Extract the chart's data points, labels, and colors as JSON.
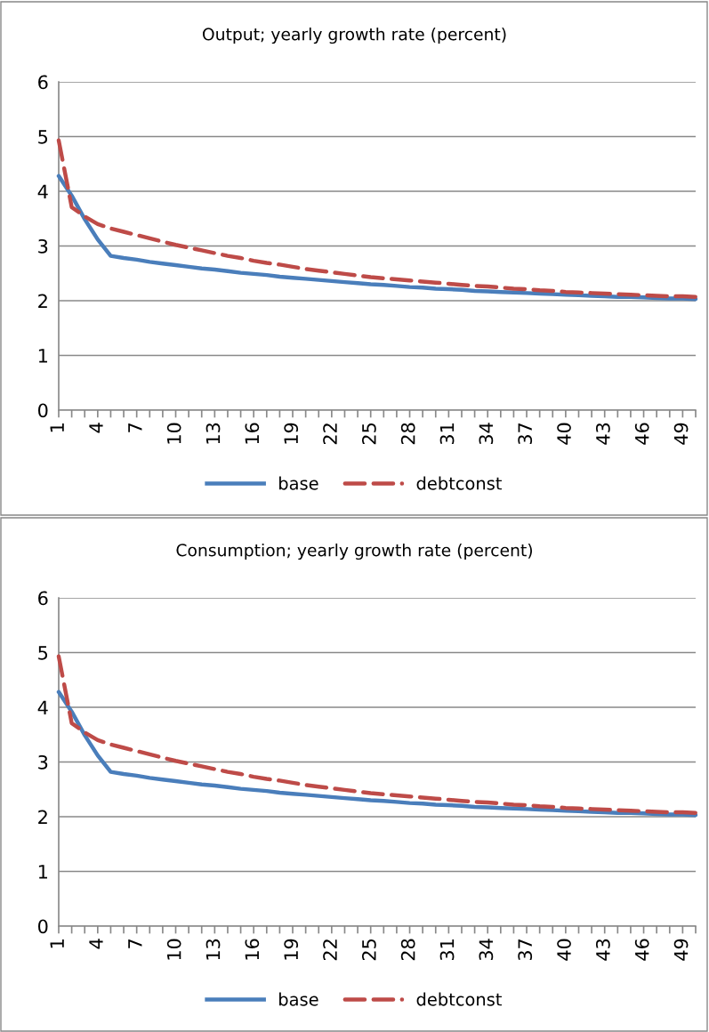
{
  "chart_data": [
    {
      "type": "line",
      "title": "Output; yearly growth rate (percent)",
      "categories": [
        "1",
        null,
        null,
        "4",
        null,
        null,
        "7",
        null,
        null,
        "10",
        null,
        null,
        "13",
        null,
        null,
        "16",
        null,
        null,
        "19",
        null,
        null,
        "22",
        null,
        null,
        "25",
        null,
        null,
        "28",
        null,
        null,
        "31",
        null,
        null,
        "34",
        null,
        null,
        "37",
        null,
        null,
        "40",
        null,
        null,
        "43",
        null,
        null,
        "46",
        null,
        null,
        "49",
        null
      ],
      "series": [
        {
          "name": "base",
          "color": "#4a7ebb",
          "line_style": "solid",
          "values": [
            4.28,
            3.92,
            3.49,
            3.12,
            2.82,
            2.78,
            2.75,
            2.71,
            2.68,
            2.65,
            2.62,
            2.59,
            2.57,
            2.54,
            2.51,
            2.49,
            2.47,
            2.44,
            2.42,
            2.4,
            2.38,
            2.36,
            2.34,
            2.32,
            2.3,
            2.29,
            2.27,
            2.25,
            2.24,
            2.22,
            2.21,
            2.2,
            2.18,
            2.17,
            2.16,
            2.15,
            2.14,
            2.13,
            2.12,
            2.11,
            2.1,
            2.09,
            2.08,
            2.07,
            2.07,
            2.06,
            2.05,
            2.04,
            2.04,
            2.03
          ]
        },
        {
          "name": "debtconst",
          "color": "#be4b48",
          "line_style": "dashed",
          "values": [
            4.93,
            3.71,
            3.54,
            3.4,
            3.32,
            3.26,
            3.2,
            3.14,
            3.08,
            3.02,
            2.97,
            2.92,
            2.87,
            2.82,
            2.78,
            2.73,
            2.69,
            2.66,
            2.62,
            2.58,
            2.55,
            2.52,
            2.49,
            2.46,
            2.43,
            2.41,
            2.39,
            2.37,
            2.35,
            2.33,
            2.31,
            2.29,
            2.27,
            2.26,
            2.24,
            2.22,
            2.21,
            2.19,
            2.18,
            2.16,
            2.15,
            2.14,
            2.13,
            2.12,
            2.11,
            2.1,
            2.09,
            2.08,
            2.08,
            2.07
          ]
        }
      ],
      "ylim": [
        0,
        6
      ],
      "yticks": [
        0,
        1,
        2,
        3,
        4,
        5,
        6
      ],
      "grid": "y",
      "legend": "bottom",
      "marker": "none"
    },
    {
      "type": "line",
      "title": "Consumption; yearly growth rate (percent)",
      "categories": [
        "1",
        null,
        null,
        "4",
        null,
        null,
        "7",
        null,
        null,
        "10",
        null,
        null,
        "13",
        null,
        null,
        "16",
        null,
        null,
        "19",
        null,
        null,
        "22",
        null,
        null,
        "25",
        null,
        null,
        "28",
        null,
        null,
        "31",
        null,
        null,
        "34",
        null,
        null,
        "37",
        null,
        null,
        "40",
        null,
        null,
        "43",
        null,
        null,
        "46",
        null,
        null,
        "49",
        null
      ],
      "series": [
        {
          "name": "base",
          "color": "#4a7ebb",
          "line_style": "solid",
          "values": [
            4.28,
            3.92,
            3.49,
            3.12,
            2.82,
            2.78,
            2.75,
            2.71,
            2.68,
            2.65,
            2.62,
            2.59,
            2.57,
            2.54,
            2.51,
            2.49,
            2.47,
            2.44,
            2.42,
            2.4,
            2.38,
            2.36,
            2.34,
            2.32,
            2.3,
            2.29,
            2.27,
            2.25,
            2.24,
            2.22,
            2.21,
            2.2,
            2.18,
            2.17,
            2.16,
            2.15,
            2.14,
            2.13,
            2.12,
            2.11,
            2.1,
            2.09,
            2.08,
            2.07,
            2.07,
            2.06,
            2.05,
            2.04,
            2.04,
            2.03
          ]
        },
        {
          "name": "debtconst",
          "color": "#be4b48",
          "line_style": "dashed",
          "values": [
            4.93,
            3.71,
            3.54,
            3.4,
            3.32,
            3.26,
            3.2,
            3.14,
            3.08,
            3.02,
            2.97,
            2.92,
            2.87,
            2.82,
            2.78,
            2.73,
            2.69,
            2.66,
            2.62,
            2.58,
            2.55,
            2.52,
            2.49,
            2.46,
            2.43,
            2.41,
            2.39,
            2.37,
            2.35,
            2.33,
            2.31,
            2.29,
            2.27,
            2.26,
            2.24,
            2.22,
            2.21,
            2.19,
            2.18,
            2.16,
            2.15,
            2.14,
            2.13,
            2.12,
            2.11,
            2.1,
            2.09,
            2.08,
            2.08,
            2.07
          ]
        }
      ],
      "ylim": [
        0,
        6
      ],
      "yticks": [
        0,
        1,
        2,
        3,
        4,
        5,
        6
      ],
      "grid": "y",
      "legend": "bottom",
      "marker": "none"
    }
  ]
}
